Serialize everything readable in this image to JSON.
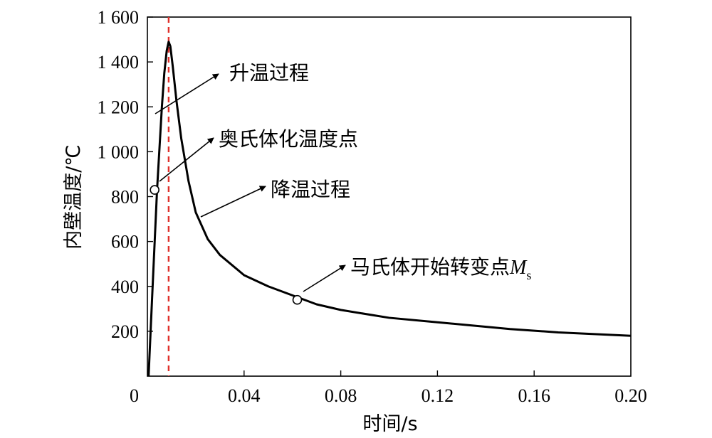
{
  "chart_data": {
    "type": "line",
    "title": "",
    "xlabel": "时间/s",
    "ylabel": "内壁温度/℃",
    "xlim": [
      0,
      0.2
    ],
    "ylim": [
      0,
      1600
    ],
    "x_ticks": [
      0,
      0.04,
      0.08,
      0.12,
      0.16,
      0.2
    ],
    "x_tick_labels": [
      "0",
      "0.04",
      "0.08",
      "0.12",
      "0.16",
      "0.20"
    ],
    "y_ticks": [
      200,
      400,
      600,
      800,
      1000,
      1200,
      1400,
      1600
    ],
    "y_tick_labels": [
      "200",
      "400",
      "600",
      "800",
      "1 000",
      "1 200",
      "1 400",
      "1 600"
    ],
    "grid": false,
    "series": [
      {
        "color": "#000000",
        "x": [
          0.0005,
          0.002,
          0.004,
          0.006,
          0.007,
          0.008,
          0.0088,
          0.0095,
          0.0105,
          0.012,
          0.014,
          0.017,
          0.02,
          0.025,
          0.03,
          0.04,
          0.05,
          0.06,
          0.07,
          0.08,
          0.1,
          0.12,
          0.15,
          0.17,
          0.2
        ],
        "y": [
          0,
          360,
          830,
          1200,
          1350,
          1450,
          1490,
          1470,
          1380,
          1230,
          1060,
          870,
          730,
          610,
          540,
          450,
          400,
          360,
          320,
          295,
          260,
          240,
          210,
          195,
          180
        ]
      }
    ],
    "vertical_line": {
      "x": 0.0088,
      "color": "#e0302b",
      "style": "dashed"
    },
    "annotations": [
      {
        "text": "升温过程",
        "target": {
          "x": 0.004,
          "y": 1150
        }
      },
      {
        "text": "奥氏体化温度点",
        "target": {
          "x": 0.003,
          "y": 830
        },
        "marker": "circle"
      },
      {
        "text": "降温过程",
        "target": {
          "x": 0.02,
          "y": 700
        }
      },
      {
        "text": "马氏体开始转变点",
        "italic_suffix": "M",
        "subscript": "s",
        "target": {
          "x": 0.062,
          "y": 340
        },
        "marker": "circle"
      }
    ]
  }
}
